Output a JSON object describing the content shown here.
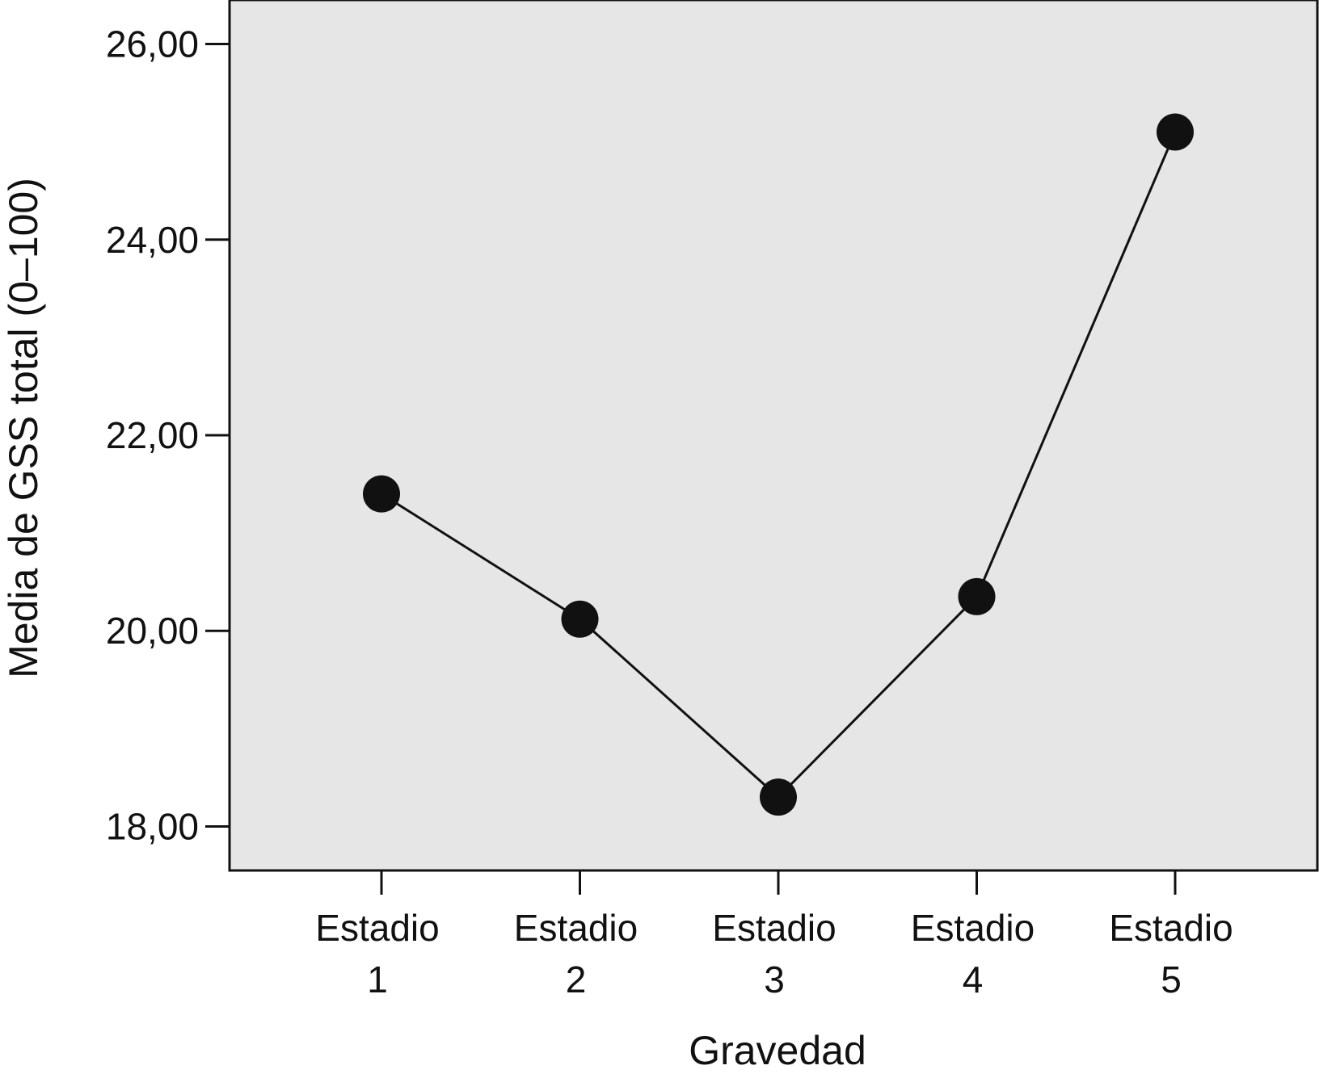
{
  "chart_data": {
    "type": "line",
    "title": "",
    "xlabel": "Gravedad",
    "ylabel": "Media de GSS total (0–100)",
    "categories": [
      [
        "Estadio",
        "1"
      ],
      [
        "Estadio",
        "2"
      ],
      [
        "Estadio",
        "3"
      ],
      [
        "Estadio",
        "4"
      ],
      [
        "Estadio",
        "5"
      ]
    ],
    "series": [
      {
        "values": [
          21.4,
          20.12,
          18.3,
          20.35,
          25.1
        ]
      }
    ],
    "ylim": [
      17.55,
      26.45
    ],
    "yticks": [
      18,
      20,
      22,
      24,
      26
    ],
    "ytick_labels": [
      "18,00",
      "20,00",
      "22,00",
      "24,00",
      "26,00"
    ],
    "grid": false,
    "legend": "none",
    "colors": {
      "plot_background": "#e6e6e6",
      "line": "#111111",
      "marker": "#111111",
      "axis": "#111111"
    }
  }
}
